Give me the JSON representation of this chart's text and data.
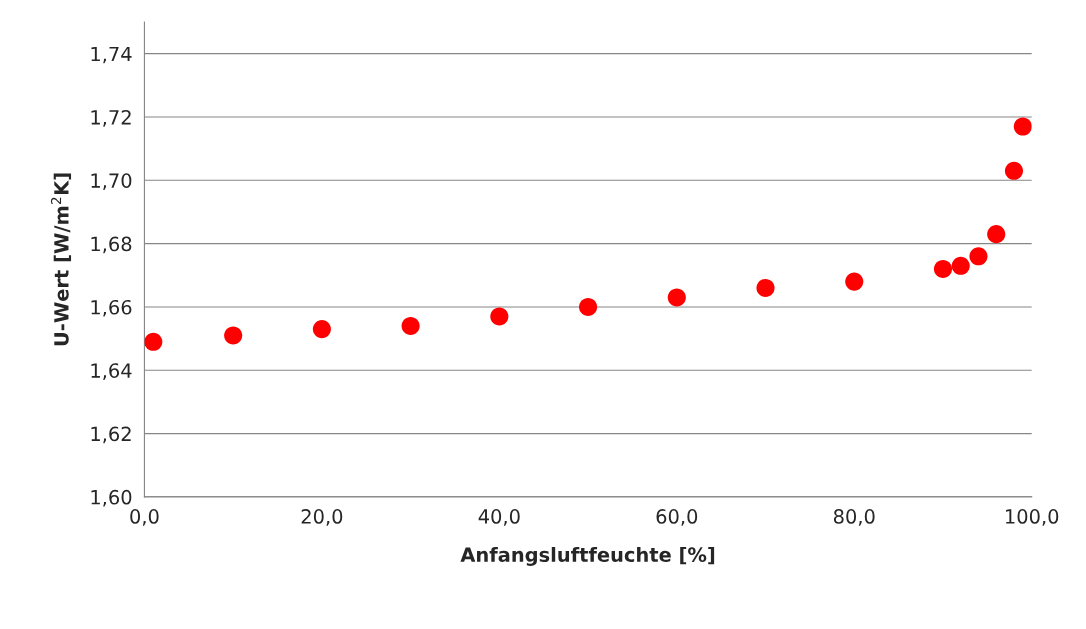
{
  "chart_data": {
    "type": "scatter",
    "xlabel": "Anfangsluftfeuchte [%]",
    "ylabel": "U-Wert [W/m$^{2}$K]",
    "x": [
      1,
      10,
      20,
      30,
      40,
      50,
      60,
      70,
      80,
      90,
      92,
      94,
      96,
      98,
      99
    ],
    "series": [
      {
        "color": "#ff0000",
        "values": [
          1.649,
          1.651,
          1.653,
          1.654,
          1.657,
          1.66,
          1.663,
          1.666,
          1.668,
          1.672,
          1.673,
          1.676,
          1.683,
          1.703,
          1.717
        ]
      }
    ],
    "xlim": [
      0,
      100
    ],
    "xticks": [
      {
        "value": 0,
        "label": "0,0"
      },
      {
        "value": 20,
        "label": "20,0"
      },
      {
        "value": 40,
        "label": "40,0"
      },
      {
        "value": 60,
        "label": "60,0"
      },
      {
        "value": 80,
        "label": "80,0"
      },
      {
        "value": 100,
        "label": "100,0"
      }
    ],
    "ylim": [
      1.6,
      1.75
    ],
    "yticks": [
      {
        "value": 1.6,
        "label": "1,60"
      },
      {
        "value": 1.62,
        "label": "1,62"
      },
      {
        "value": 1.64,
        "label": "1,64"
      },
      {
        "value": 1.66,
        "label": "1,66"
      },
      {
        "value": 1.68,
        "label": "1,68"
      },
      {
        "value": 1.7,
        "label": "1,70"
      },
      {
        "value": 1.72,
        "label": "1,72"
      },
      {
        "value": 1.74,
        "label": "1,74"
      }
    ],
    "grid": "y",
    "marker": "circle",
    "legend": false
  }
}
